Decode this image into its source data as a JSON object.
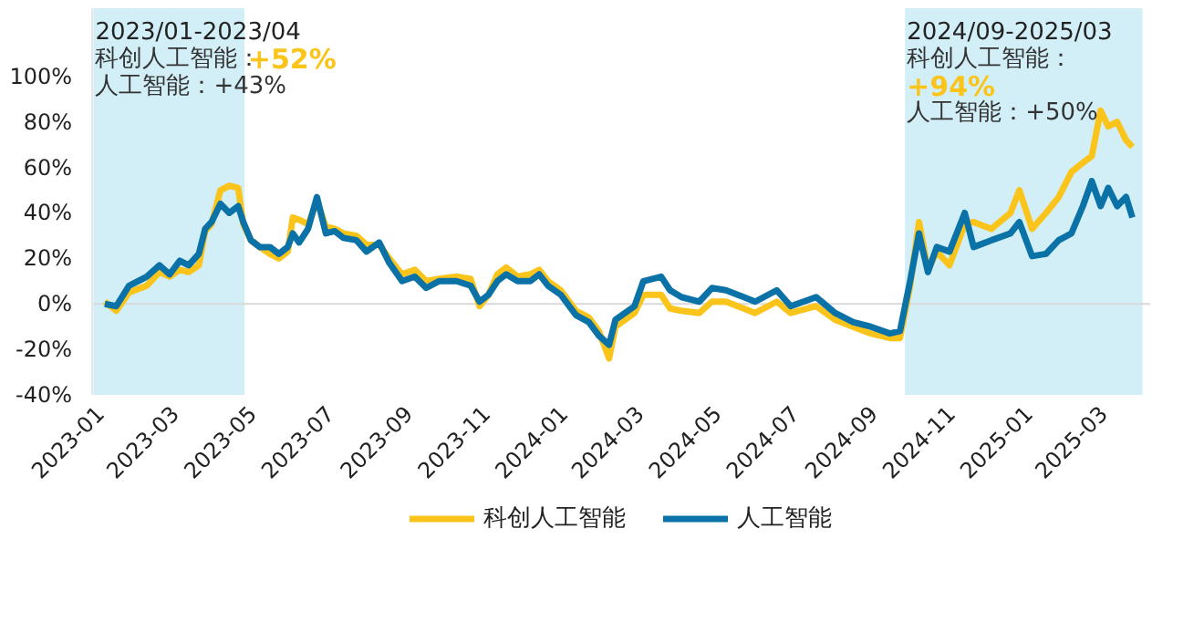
{
  "chart_data": {
    "type": "line",
    "x": [
      "2023-01-05",
      "2023-01-14",
      "2023-01-24",
      "2023-02-07",
      "2023-02-17",
      "2023-02-25",
      "2023-03-05",
      "2023-03-12",
      "2023-03-20",
      "2023-03-25",
      "2023-03-30",
      "2023-04-06",
      "2023-04-13",
      "2023-04-20",
      "2023-04-24",
      "2023-04-30",
      "2023-05-07",
      "2023-05-15",
      "2023-05-22",
      "2023-05-29",
      "2023-06-02",
      "2023-06-07",
      "2023-06-14",
      "2023-06-21",
      "2023-06-28",
      "2023-07-05",
      "2023-07-12",
      "2023-07-22",
      "2023-07-30",
      "2023-08-09",
      "2023-08-17",
      "2023-08-27",
      "2023-09-06",
      "2023-09-15",
      "2023-09-25",
      "2023-10-09",
      "2023-10-20",
      "2023-10-27",
      "2023-11-03",
      "2023-11-10",
      "2023-11-17",
      "2023-11-26",
      "2023-12-06",
      "2023-12-13",
      "2023-12-20",
      "2023-12-30",
      "2024-01-11",
      "2024-01-21",
      "2024-01-29",
      "2024-02-06",
      "2024-02-11",
      "2024-02-26",
      "2024-03-04",
      "2024-03-18",
      "2024-03-25",
      "2024-04-03",
      "2024-04-17",
      "2024-04-27",
      "2024-05-08",
      "2024-05-22",
      "2024-05-31",
      "2024-06-17",
      "2024-06-28",
      "2024-07-18",
      "2024-08-02",
      "2024-08-16",
      "2024-08-30",
      "2024-09-14",
      "2024-09-22",
      "2024-09-30",
      "2024-10-07",
      "2024-10-14",
      "2024-10-21",
      "2024-10-31",
      "2024-11-12",
      "2024-11-19",
      "2024-12-03",
      "2024-12-18",
      "2024-12-25",
      "2025-01-04",
      "2025-01-15",
      "2025-01-25",
      "2025-02-04",
      "2025-02-13",
      "2025-02-20",
      "2025-02-27",
      "2025-03-05",
      "2025-03-12",
      "2025-03-19",
      "2025-03-24"
    ],
    "series": [
      {
        "name": "科创人工智能",
        "color": "#fbc41b",
        "values": [
          1,
          -3,
          5,
          8,
          14,
          12,
          15,
          14,
          17,
          32,
          35,
          50,
          52,
          51,
          35,
          28,
          25,
          22,
          20,
          23,
          38,
          37,
          35,
          45,
          34,
          33,
          31,
          30,
          26,
          26,
          20,
          13,
          15,
          10,
          11,
          12,
          11,
          -1,
          4,
          13,
          16,
          12,
          13,
          15,
          10,
          6,
          -3,
          -6,
          -12,
          -24,
          -10,
          -4,
          4,
          4,
          -2,
          -3,
          -4,
          1,
          1,
          -2,
          -4,
          1,
          -4,
          -1,
          -7,
          -10,
          -13,
          -15,
          -15,
          8,
          36,
          15,
          23,
          17,
          35,
          36,
          33,
          40,
          50,
          33,
          40,
          47,
          58,
          62,
          65,
          85,
          78,
          80,
          72,
          69
        ]
      },
      {
        "name": "人工智能",
        "color": "#0a72a6",
        "values": [
          0,
          -1,
          8,
          12,
          17,
          13,
          19,
          17,
          22,
          33,
          36,
          44,
          40,
          43,
          36,
          28,
          25,
          25,
          22,
          25,
          31,
          27,
          33,
          47,
          31,
          32,
          29,
          28,
          23,
          27,
          18,
          10,
          12,
          7,
          10,
          10,
          8,
          1,
          4,
          10,
          13,
          10,
          10,
          13,
          8,
          4,
          -5,
          -8,
          -14,
          -18,
          -7,
          -1,
          10,
          12,
          6,
          3,
          1,
          7,
          6,
          3,
          1,
          6,
          -1,
          3,
          -4,
          -8,
          -10,
          -13,
          -12,
          10,
          31,
          14,
          25,
          23,
          40,
          25,
          28,
          31,
          36,
          21,
          22,
          28,
          31,
          43,
          54,
          43,
          51,
          43,
          47,
          38
        ]
      }
    ],
    "xlim": [
      "2022-12-26",
      "2025-04-07"
    ],
    "xticks": [
      {
        "value": "2023-01-01",
        "label": "2023-01"
      },
      {
        "value": "2023-03-01",
        "label": "2023-03"
      },
      {
        "value": "2023-05-01",
        "label": "2023-05"
      },
      {
        "value": "2023-07-01",
        "label": "2023-07"
      },
      {
        "value": "2023-09-01",
        "label": "2023-09"
      },
      {
        "value": "2023-11-01",
        "label": "2023-11"
      },
      {
        "value": "2024-01-01",
        "label": "2024-01"
      },
      {
        "value": "2024-03-01",
        "label": "2024-03"
      },
      {
        "value": "2024-05-01",
        "label": "2024-05"
      },
      {
        "value": "2024-07-01",
        "label": "2024-07"
      },
      {
        "value": "2024-09-01",
        "label": "2024-09"
      },
      {
        "value": "2024-11-01",
        "label": "2024-11"
      },
      {
        "value": "2025-01-01",
        "label": "2025-01"
      },
      {
        "value": "2025-03-01",
        "label": "2025-03"
      }
    ],
    "ylim": [
      -40,
      130
    ],
    "yticks": [
      {
        "value": -40,
        "label": "-40%"
      },
      {
        "value": -20,
        "label": "-20%"
      },
      {
        "value": 0,
        "label": "0%"
      },
      {
        "value": 20,
        "label": "20%"
      },
      {
        "value": 40,
        "label": "40%"
      },
      {
        "value": 60,
        "label": "60%"
      },
      {
        "value": 80,
        "label": "80%"
      },
      {
        "value": 100,
        "label": "100%"
      }
    ],
    "bands": [
      {
        "axis": "x",
        "from": "2022-12-27",
        "to": "2023-04-25",
        "label": "2023/01-2023/04",
        "color": "#d2eff7"
      },
      {
        "axis": "x",
        "from": "2024-09-26",
        "to": "2025-04-01",
        "label": "2024/09-2025/03",
        "color": "#d2eff7"
      }
    ],
    "ref_lines": [
      {
        "axis": "y",
        "value": 0,
        "color": "#d9d9d9"
      }
    ],
    "annotations": [
      "科创人工智能：",
      "+52%",
      "人工智能：+43%",
      "科创人工智能：",
      "+94%",
      "人工智能：+50%"
    ],
    "grid": false,
    "legend": "bottom",
    "line_style": "solid",
    "marker": "none"
  }
}
